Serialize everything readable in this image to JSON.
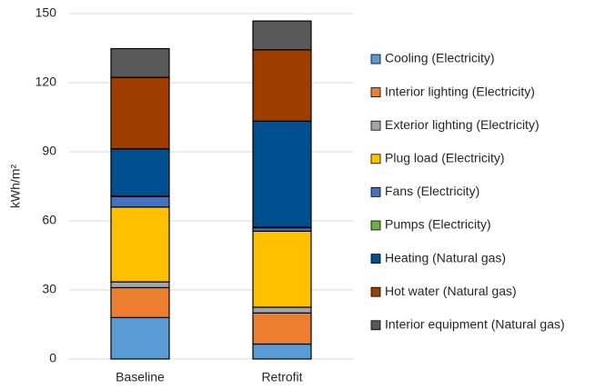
{
  "chart_data": {
    "type": "stacked-bar",
    "y_label": "kWh/m²",
    "categories": [
      "Baseline",
      "Retrofit"
    ],
    "series": [
      {
        "name": "Cooling (Electricity)",
        "color": "#5b9bd5",
        "values": [
          18,
          6.5
        ]
      },
      {
        "name": "Interior lighting (Electricity)",
        "color": "#ed7d31",
        "values": [
          13,
          13.5
        ]
      },
      {
        "name": "Exterior lighting (Electricity)",
        "color": "#a5a5a5",
        "values": [
          2.5,
          2.5
        ]
      },
      {
        "name": "Plug load (Electricity)",
        "color": "#ffc000",
        "values": [
          32.5,
          33
        ]
      },
      {
        "name": "Fans (Electricity)",
        "color": "#4472c4",
        "values": [
          4.5,
          1.5
        ]
      },
      {
        "name": "Pumps (Electricity)",
        "color": "#70ad47",
        "values": [
          0.3,
          0.3
        ]
      },
      {
        "name": "Heating (Natural gas)",
        "color": "#00508f",
        "values": [
          20.5,
          46
        ]
      },
      {
        "name": "Hot water (Natural gas)",
        "color": "#9e3d00",
        "values": [
          31,
          31
        ]
      },
      {
        "name": "Interior equipment (Natural gas)",
        "color": "#595959",
        "values": [
          12.5,
          12.5
        ]
      }
    ],
    "ylim": [
      0,
      150
    ],
    "yticks": [
      0,
      30,
      60,
      90,
      120,
      150
    ],
    "grid": true
  }
}
